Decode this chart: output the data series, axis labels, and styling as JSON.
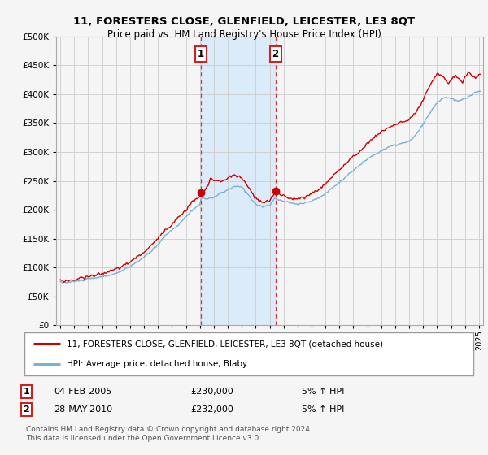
{
  "title": "11, FORESTERS CLOSE, GLENFIELD, LEICESTER, LE3 8QT",
  "subtitle": "Price paid vs. HM Land Registry's House Price Index (HPI)",
  "footer": "Contains HM Land Registry data © Crown copyright and database right 2024.\nThis data is licensed under the Open Government Licence v3.0.",
  "legend_line1": "11, FORESTERS CLOSE, GLENFIELD, LEICESTER, LE3 8QT (detached house)",
  "legend_line2": "HPI: Average price, detached house, Blaby",
  "annotation1_label": "1",
  "annotation1_date": "04-FEB-2005",
  "annotation1_price": "£230,000",
  "annotation1_hpi": "5% ↑ HPI",
  "annotation2_label": "2",
  "annotation2_date": "28-MAY-2010",
  "annotation2_price": "£232,000",
  "annotation2_hpi": "5% ↑ HPI",
  "property_color": "#cc0000",
  "hpi_color": "#7ab0d4",
  "background_color": "#f5f5f5",
  "plot_bg_color": "#f5f5f5",
  "grid_color": "#cccccc",
  "vline_color": "#dd3333",
  "shade_color": "#cce5ff",
  "ylim": [
    0,
    500000
  ],
  "yticks": [
    0,
    50000,
    100000,
    150000,
    200000,
    250000,
    300000,
    350000,
    400000,
    450000,
    500000
  ],
  "sale1_x": 2005.08,
  "sale1_y": 230000,
  "sale2_x": 2010.41,
  "sale2_y": 232000,
  "xlim_min": 1994.7,
  "xlim_max": 2025.3
}
